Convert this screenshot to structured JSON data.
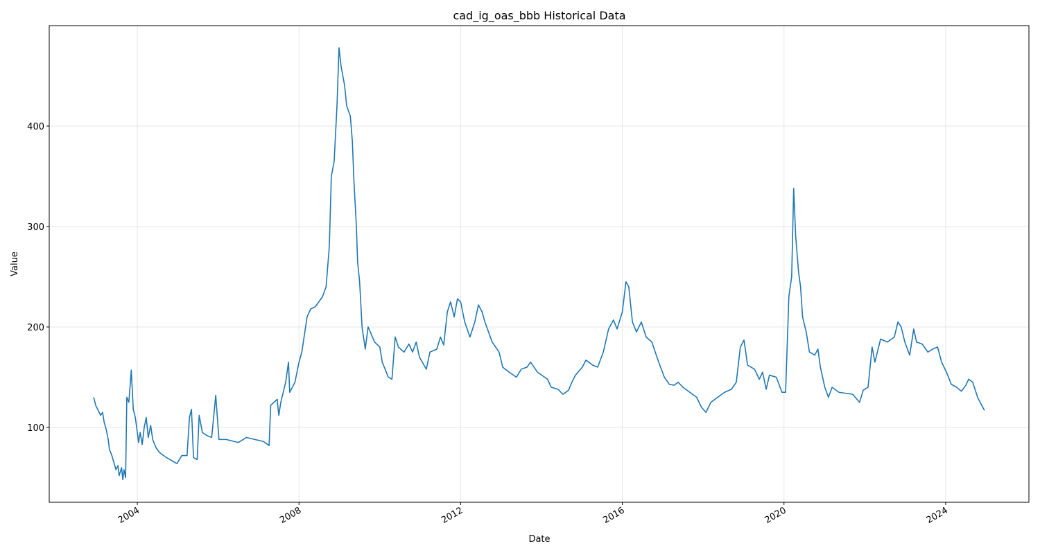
{
  "chart_data": {
    "type": "line",
    "title": "cad_ig_oas_bbb Historical Data",
    "x_label": "Date",
    "y_label": "Value",
    "xlim": [
      2001.82,
      2026.06
    ],
    "ylim": [
      25.5,
      500
    ],
    "xticks": [
      2004,
      2008,
      2012,
      2016,
      2020,
      2024
    ],
    "yticks": [
      100,
      200,
      300,
      400
    ],
    "grid": true,
    "series": [
      {
        "name": "cad_ig_oas_bbb",
        "color": "#1f77b4",
        "x": [
          2002.92,
          2002.97,
          2003.02,
          2003.09,
          2003.14,
          2003.18,
          2003.23,
          2003.28,
          2003.31,
          2003.37,
          2003.42,
          2003.47,
          2003.52,
          2003.55,
          2003.61,
          2003.64,
          2003.67,
          2003.71,
          2003.74,
          2003.79,
          2003.85,
          2003.9,
          2003.95,
          2004.0,
          2004.03,
          2004.07,
          2004.12,
          2004.17,
          2004.22,
          2004.27,
          2004.33,
          2004.38,
          2004.46,
          2004.55,
          2004.72,
          2004.98,
          2005.1,
          2005.23,
          2005.29,
          2005.34,
          2005.39,
          2005.48,
          2005.53,
          2005.61,
          2005.72,
          2005.84,
          2005.94,
          2006.02,
          2006.2,
          2006.5,
          2006.7,
          2007.12,
          2007.26,
          2007.3,
          2007.46,
          2007.5,
          2007.55,
          2007.67,
          2007.74,
          2007.77,
          2007.9,
          2008.0,
          2008.07,
          2008.2,
          2008.29,
          2008.4,
          2008.58,
          2008.67,
          2008.75,
          2008.8,
          2008.87,
          2008.94,
          2008.99,
          2009.04,
          2009.13,
          2009.18,
          2009.27,
          2009.32,
          2009.36,
          2009.42,
          2009.45,
          2009.5,
          2009.56,
          2009.64,
          2009.71,
          2009.87,
          2010.0,
          2010.06,
          2010.21,
          2010.3,
          2010.38,
          2010.46,
          2010.6,
          2010.72,
          2010.81,
          2010.9,
          2010.98,
          2011.15,
          2011.24,
          2011.41,
          2011.5,
          2011.58,
          2011.67,
          2011.75,
          2011.84,
          2011.92,
          2012.0,
          2012.1,
          2012.23,
          2012.35,
          2012.44,
          2012.53,
          2012.6,
          2012.78,
          2012.95,
          2013.04,
          2013.2,
          2013.38,
          2013.5,
          2013.64,
          2013.73,
          2013.9,
          2014.15,
          2014.24,
          2014.41,
          2014.53,
          2014.67,
          2014.75,
          2014.84,
          2015.01,
          2015.1,
          2015.27,
          2015.39,
          2015.53,
          2015.66,
          2015.78,
          2015.87,
          2016.0,
          2016.09,
          2016.16,
          2016.25,
          2016.35,
          2016.47,
          2016.59,
          2016.73,
          2016.9,
          2017.04,
          2017.16,
          2017.28,
          2017.38,
          2017.5,
          2017.67,
          2017.84,
          2017.96,
          2018.07,
          2018.19,
          2018.36,
          2018.53,
          2018.7,
          2018.82,
          2018.92,
          2019.01,
          2019.1,
          2019.27,
          2019.39,
          2019.47,
          2019.56,
          2019.64,
          2019.81,
          2019.95,
          2020.04,
          2020.12,
          2020.19,
          2020.24,
          2020.29,
          2020.36,
          2020.41,
          2020.46,
          2020.55,
          2020.63,
          2020.76,
          2020.84,
          2020.9,
          2021.01,
          2021.1,
          2021.19,
          2021.36,
          2021.7,
          2021.87,
          2021.96,
          2022.08,
          2022.18,
          2022.25,
          2022.39,
          2022.56,
          2022.73,
          2022.82,
          2022.9,
          2022.99,
          2023.11,
          2023.21,
          2023.28,
          2023.42,
          2023.56,
          2023.68,
          2023.8,
          2023.9,
          2024.02,
          2024.14,
          2024.27,
          2024.39,
          2024.5,
          2024.57,
          2024.67,
          2024.79,
          2024.88,
          2024.96
        ],
        "values": [
          130,
          122,
          118,
          112,
          115,
          105,
          98,
          88,
          78,
          72,
          65,
          58,
          62,
          52,
          60,
          48,
          58,
          50,
          130,
          125,
          157,
          118,
          110,
          95,
          85,
          95,
          83,
          100,
          110,
          90,
          102,
          88,
          80,
          75,
          70,
          64,
          72,
          72,
          110,
          118,
          70,
          68,
          112,
          95,
          92,
          90,
          132,
          88,
          88,
          85,
          90,
          86,
          82,
          122,
          128,
          112,
          125,
          145,
          165,
          135,
          145,
          165,
          175,
          210,
          218,
          220,
          230,
          240,
          280,
          350,
          365,
          420,
          478,
          460,
          440,
          420,
          410,
          385,
          345,
          300,
          265,
          245,
          200,
          178,
          200,
          185,
          180,
          165,
          150,
          148,
          190,
          180,
          175,
          183,
          175,
          185,
          170,
          158,
          175,
          178,
          190,
          182,
          215,
          225,
          210,
          228,
          225,
          205,
          190,
          205,
          222,
          215,
          205,
          185,
          175,
          160,
          155,
          150,
          158,
          160,
          165,
          155,
          148,
          140,
          138,
          133,
          137,
          145,
          152,
          160,
          167,
          162,
          160,
          175,
          198,
          207,
          198,
          215,
          245,
          240,
          205,
          195,
          205,
          190,
          185,
          165,
          150,
          143,
          142,
          145,
          140,
          135,
          130,
          120,
          115,
          125,
          130,
          135,
          138,
          145,
          180,
          187,
          162,
          158,
          148,
          155,
          138,
          152,
          150,
          135,
          135,
          230,
          250,
          338,
          290,
          255,
          240,
          210,
          195,
          175,
          172,
          178,
          160,
          140,
          130,
          140,
          135,
          133,
          125,
          137,
          140,
          180,
          165,
          188,
          185,
          190,
          205,
          200,
          185,
          172,
          198,
          185,
          183,
          175,
          178,
          180,
          165,
          155,
          143,
          140,
          136,
          142,
          148,
          145,
          130,
          123,
          117
        ]
      }
    ]
  }
}
